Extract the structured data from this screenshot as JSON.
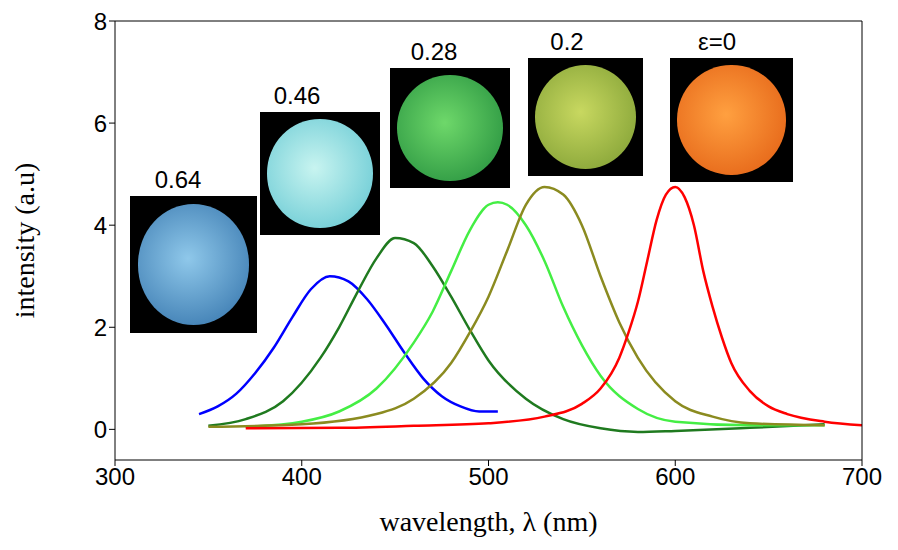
{
  "chart_data": {
    "type": "line",
    "x_label": "wavelength, λ (nm)",
    "y_label": "intensity (a.u)",
    "xlim": [
      300,
      700
    ],
    "xticks": [
      300,
      400,
      500,
      600,
      700
    ],
    "ylim": [
      -0.6,
      8
    ],
    "yticks": [
      0,
      2,
      4,
      6,
      8
    ],
    "grid": false,
    "series": [
      {
        "name": "0.64",
        "color": "#0000ff",
        "x": [
          345,
          355,
          365,
          375,
          385,
          395,
          405,
          415,
          425,
          435,
          445,
          455,
          465,
          475,
          485,
          495,
          505
        ],
        "values": [
          0.3,
          0.45,
          0.7,
          1.1,
          1.6,
          2.2,
          2.75,
          3.0,
          2.9,
          2.55,
          2.05,
          1.5,
          1.0,
          0.65,
          0.45,
          0.35,
          0.35
        ]
      },
      {
        "name": "0.46",
        "color": "#1f7a1f",
        "x": [
          350,
          370,
          390,
          410,
          420,
          430,
          440,
          450,
          460,
          470,
          480,
          490,
          500,
          520,
          540,
          560,
          580,
          600,
          640,
          680
        ],
        "values": [
          0.07,
          0.2,
          0.55,
          1.4,
          2.0,
          2.7,
          3.35,
          3.75,
          3.65,
          3.2,
          2.6,
          1.95,
          1.35,
          0.6,
          0.2,
          0.02,
          -0.05,
          -0.03,
          0.03,
          0.1
        ]
      },
      {
        "name": "0.28",
        "color": "#44ee44",
        "x": [
          370,
          400,
          420,
          440,
          460,
          470,
          480,
          490,
          500,
          505,
          510,
          520,
          530,
          540,
          550,
          560,
          580,
          600,
          640,
          680
        ],
        "values": [
          0.05,
          0.15,
          0.35,
          0.8,
          1.7,
          2.3,
          3.1,
          3.9,
          4.4,
          4.45,
          4.4,
          4.0,
          3.3,
          2.4,
          1.65,
          1.05,
          0.4,
          0.15,
          0.08,
          0.08
        ]
      },
      {
        "name": "0.2",
        "color": "#8b8b20",
        "x": [
          350,
          400,
          440,
          460,
          480,
          490,
          500,
          510,
          520,
          530,
          540,
          550,
          560,
          570,
          580,
          600,
          620,
          640,
          680
        ],
        "values": [
          0.05,
          0.1,
          0.3,
          0.6,
          1.3,
          1.9,
          2.6,
          3.5,
          4.4,
          4.75,
          4.6,
          4.0,
          3.0,
          2.1,
          1.4,
          0.55,
          0.25,
          0.12,
          0.08
        ]
      },
      {
        "name": "ε=0",
        "color": "#ff0000",
        "x": [
          370,
          420,
          460,
          500,
          530,
          550,
          560,
          570,
          575,
          580,
          585,
          590,
          595,
          600,
          605,
          610,
          615,
          620,
          625,
          630,
          640,
          650,
          660,
          680,
          700
        ],
        "values": [
          0.02,
          0.03,
          0.07,
          0.12,
          0.25,
          0.5,
          0.8,
          1.4,
          1.9,
          2.5,
          3.3,
          4.1,
          4.6,
          4.75,
          4.55,
          4.0,
          3.1,
          2.4,
          1.8,
          1.3,
          0.75,
          0.45,
          0.3,
          0.15,
          0.08
        ]
      }
    ]
  }
}
